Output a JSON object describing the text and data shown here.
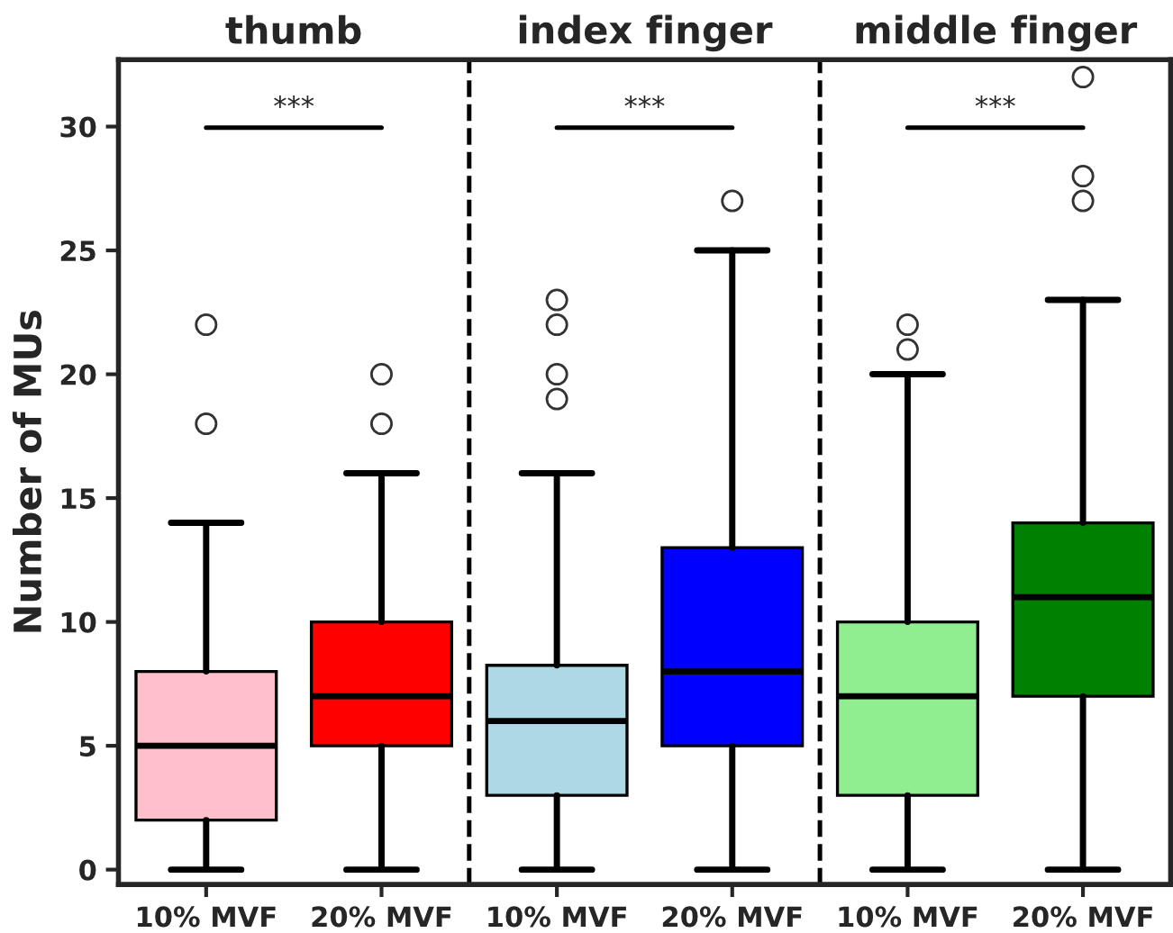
{
  "chart_data": {
    "type": "box",
    "ylabel": "Number of MUs",
    "categories": [
      "10% MVF",
      "20% MVF",
      "10% MVF",
      "20% MVF",
      "10% MVF",
      "20% MVF"
    ],
    "colors": [
      "#ffc0cb",
      "#ff0000",
      "#add8e6",
      "#0000ff",
      "#90ee90",
      "#008000"
    ],
    "boxes": [
      {
        "low": 0,
        "q1": 2,
        "median": 5,
        "q3": 8,
        "high": 14,
        "outliers": [
          18,
          22
        ]
      },
      {
        "low": 0,
        "q1": 5,
        "median": 7,
        "q3": 10,
        "high": 16,
        "outliers": [
          18,
          20
        ]
      },
      {
        "low": 0,
        "q1": 3,
        "median": 6,
        "q3": 8.25,
        "high": 16,
        "outliers": [
          19,
          20,
          22,
          23
        ]
      },
      {
        "low": 0,
        "q1": 5,
        "median": 8,
        "q3": 13,
        "high": 25,
        "outliers": [
          27
        ]
      },
      {
        "low": 0,
        "q1": 3,
        "median": 7,
        "q3": 10,
        "high": 20,
        "outliers": [
          21,
          22
        ]
      },
      {
        "low": 0,
        "q1": 7,
        "median": 11,
        "q3": 14,
        "high": 23,
        "outliers": [
          27,
          28,
          32
        ]
      }
    ],
    "annotations": [
      "thumb",
      "index finger",
      "middle finger",
      "***",
      "***",
      "***"
    ],
    "ylim": [
      -0.6,
      32.7
    ],
    "yticks": [
      0,
      5,
      10,
      15,
      20,
      25,
      30
    ],
    "grid": false
  }
}
